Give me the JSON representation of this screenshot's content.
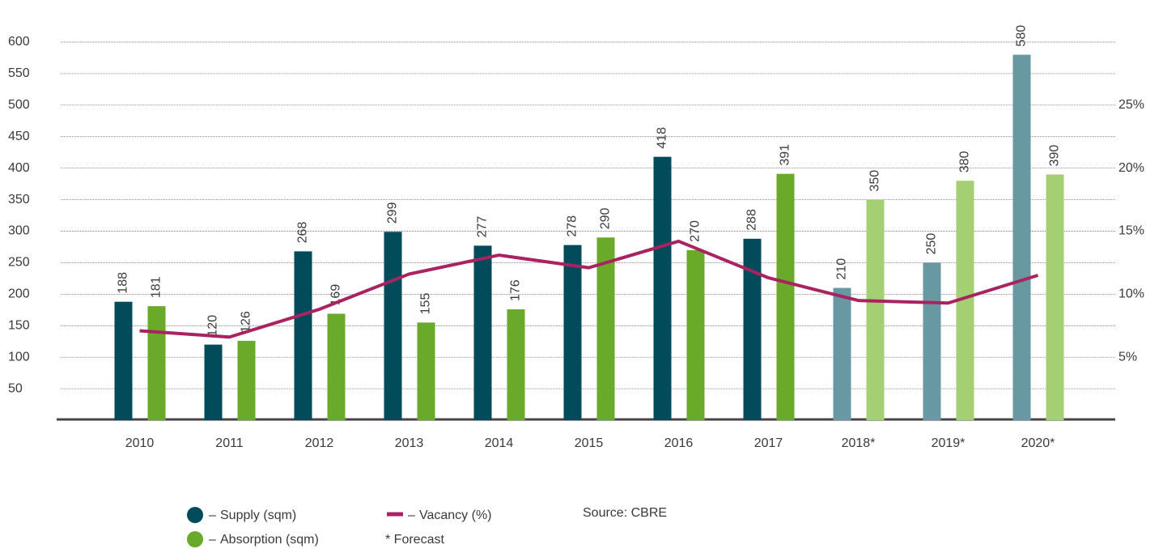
{
  "chart_data": {
    "type": "bar",
    "categories": [
      "2010",
      "2011",
      "2012",
      "2013",
      "2014",
      "2015",
      "2016",
      "2017",
      "2018*",
      "2019*",
      "2020*"
    ],
    "series": [
      {
        "name": "Supply (sqm)",
        "color": "#014b5a",
        "colors": [
          "#014b5a",
          "#014b5a",
          "#014b5a",
          "#014b5a",
          "#014b5a",
          "#014b5a",
          "#014b5a",
          "#014b5a",
          "#6899a3",
          "#6899a3",
          "#6899a3"
        ],
        "values": [
          188,
          120,
          268,
          299,
          277,
          278,
          418,
          288,
          210,
          250,
          580
        ]
      },
      {
        "name": "Absorption (sqm)",
        "color": "#6aaa2a",
        "colors": [
          "#6aaa2a",
          "#6aaa2a",
          "#6aaa2a",
          "#6aaa2a",
          "#6aaa2a",
          "#6aaa2a",
          "#6aaa2a",
          "#6aaa2a",
          "#a5cf73",
          "#a5cf73",
          "#a5cf73"
        ],
        "values": [
          181,
          126,
          169,
          155,
          176,
          290,
          270,
          391,
          350,
          380,
          390
        ]
      },
      {
        "name": "Vacancy (%)",
        "type": "line",
        "axis": "y2",
        "color": "#a8235f",
        "values": [
          7.1,
          6.6,
          8.8,
          11.6,
          13.1,
          12.1,
          14.2,
          11.3,
          9.5,
          9.3,
          11.5
        ]
      }
    ],
    "ylim": [
      0,
      600
    ],
    "yticks": [
      50,
      100,
      150,
      200,
      250,
      300,
      350,
      400,
      450,
      500,
      550,
      600
    ],
    "y2lim": [
      0,
      30
    ],
    "y2ticks": [
      {
        "value": 5,
        "label": "5%"
      },
      {
        "value": 10,
        "label": "10%"
      },
      {
        "value": 15,
        "label": "15%"
      },
      {
        "value": 20,
        "label": "20%"
      },
      {
        "value": 25,
        "label": "25%"
      }
    ],
    "grid": true,
    "annotations": [
      "* Forecast",
      "Source: CBRE"
    ]
  }
}
